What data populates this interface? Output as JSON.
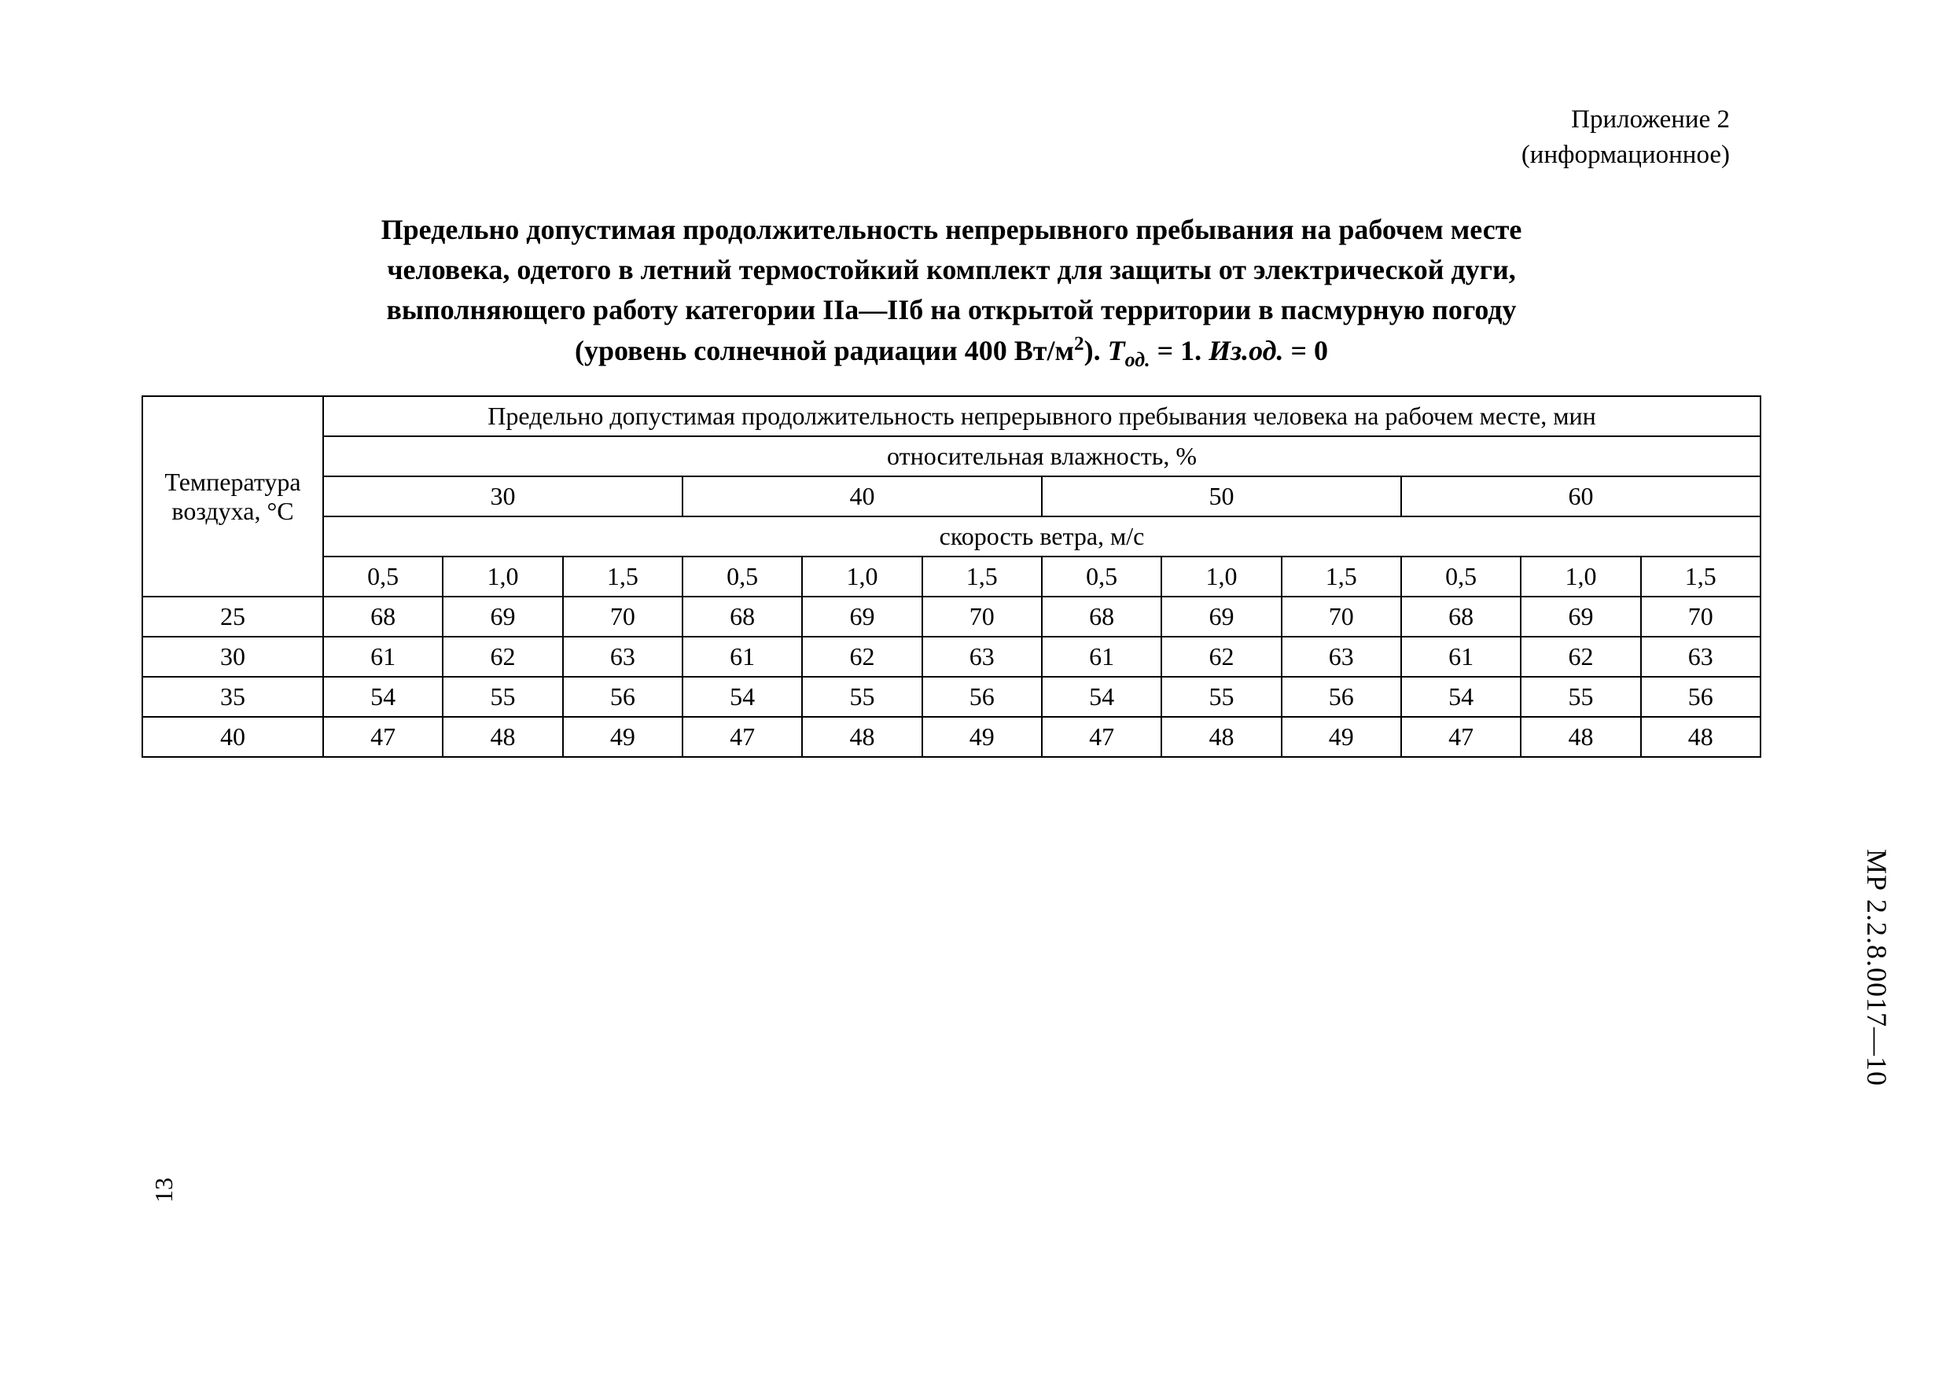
{
  "appendix": {
    "line1": "Приложение 2",
    "line2": "(информационное)"
  },
  "title": {
    "line1": "Предельно допустимая продолжительность непрерывного пребывания на рабочем месте",
    "line2": "человека, одетого в летний термостойкий комплект для защиты от электрической дуги,",
    "line3": "выполняющего работу категории IIа—IIб на открытой территории в пасмурную погоду",
    "line4_prefix": "(уровень солнечной радиации 400 Вт/м",
    "line4_sup": "2",
    "line4_after": "). ",
    "t_sym": "T",
    "t_sub": "од.",
    "eq1": " = 1. ",
    "iz": "Из.од.",
    "eq2": " = 0"
  },
  "table": {
    "rowhead_l1": "Температура",
    "rowhead_l2": "воздуха, °С",
    "top_header": "Предельно допустимая продолжительность непрерывного пребывания человека на рабочем месте, мин",
    "humidity_label": "относительная влажность, %",
    "humidity_groups": [
      "30",
      "40",
      "50",
      "60"
    ],
    "wind_label": "скорость ветра, м/с",
    "wind_cols": [
      "0,5",
      "1,0",
      "1,5",
      "0,5",
      "1,0",
      "1,5",
      "0,5",
      "1,0",
      "1,5",
      "0,5",
      "1,0",
      "1,5"
    ],
    "rows": [
      {
        "t": "25",
        "v": [
          "68",
          "69",
          "70",
          "68",
          "69",
          "70",
          "68",
          "69",
          "70",
          "68",
          "69",
          "70"
        ]
      },
      {
        "t": "30",
        "v": [
          "61",
          "62",
          "63",
          "61",
          "62",
          "63",
          "61",
          "62",
          "63",
          "61",
          "62",
          "63"
        ]
      },
      {
        "t": "35",
        "v": [
          "54",
          "55",
          "56",
          "54",
          "55",
          "56",
          "54",
          "55",
          "56",
          "54",
          "55",
          "56"
        ]
      },
      {
        "t": "40",
        "v": [
          "47",
          "48",
          "49",
          "47",
          "48",
          "49",
          "47",
          "48",
          "49",
          "47",
          "48",
          "48"
        ]
      }
    ],
    "border_color": "#000000",
    "background_color": "#ffffff",
    "font_size_pt": 24
  },
  "side_code": "МР 2.2.8.0017—10",
  "page_number": "13"
}
